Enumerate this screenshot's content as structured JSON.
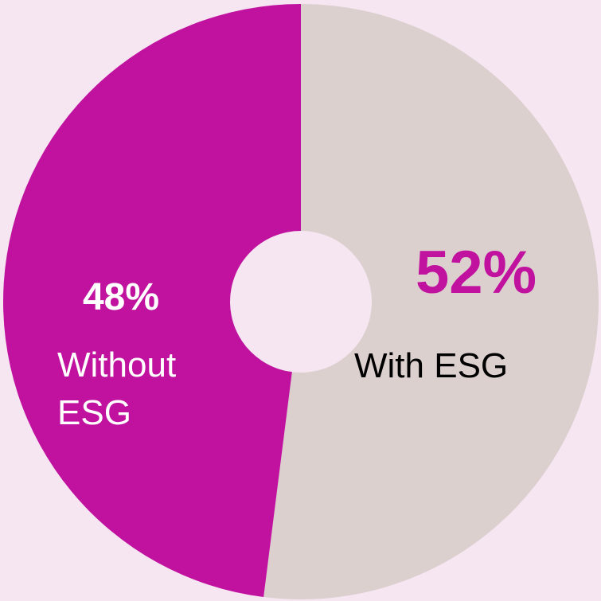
{
  "chart_data": {
    "type": "pie",
    "title": "",
    "donut": true,
    "start_angle_deg": 0,
    "direction": "clockwise",
    "background_color": "#f5e6f2",
    "slices": [
      {
        "name": "With ESG",
        "value": 52,
        "value_label": "52%",
        "color": "#dcd0cf",
        "value_label_color": "#c0129e",
        "name_label_color": "#000000"
      },
      {
        "name": "Without ESG",
        "name_lines": [
          "Without",
          "ESG"
        ],
        "value": 48,
        "value_label": "48%",
        "color": "#c0129e",
        "value_label_color": "#ffffff",
        "name_label_color": "#ffffff"
      }
    ]
  }
}
